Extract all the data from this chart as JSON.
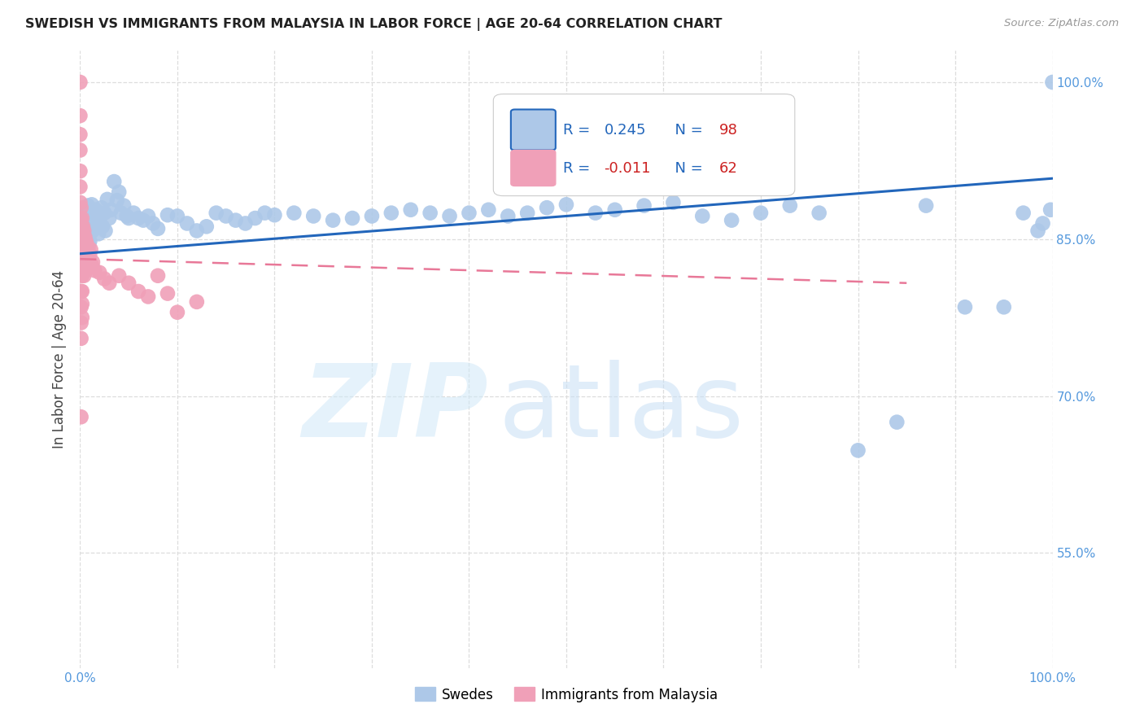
{
  "title": "SWEDISH VS IMMIGRANTS FROM MALAYSIA IN LABOR FORCE | AGE 20-64 CORRELATION CHART",
  "source": "Source: ZipAtlas.com",
  "ylabel": "In Labor Force | Age 20-64",
  "xlim": [
    0.0,
    1.0
  ],
  "ylim": [
    0.44,
    1.03
  ],
  "y_ticks": [
    0.55,
    0.7,
    0.85,
    1.0
  ],
  "y_tick_labels": [
    "55.0%",
    "70.0%",
    "85.0%",
    "100.0%"
  ],
  "swedes_color": "#adc8e8",
  "swedes_edge_color": "#adc8e8",
  "immigrants_color": "#f0a0b8",
  "immigrants_edge_color": "#f0a0b8",
  "swedes_line_color": "#2266bb",
  "immigrants_line_color": "#e87898",
  "tick_color": "#5599dd",
  "R_swedes": "0.245",
  "N_swedes": "98",
  "R_immigrants": "-0.011",
  "N_immigrants": "62",
  "legend_label1": "Swedes",
  "legend_label2": "Immigrants from Malaysia",
  "sw_x": [
    0.002,
    0.003,
    0.003,
    0.004,
    0.005,
    0.005,
    0.005,
    0.006,
    0.006,
    0.007,
    0.007,
    0.007,
    0.008,
    0.008,
    0.008,
    0.009,
    0.009,
    0.009,
    0.01,
    0.01,
    0.01,
    0.011,
    0.012,
    0.012,
    0.013,
    0.014,
    0.015,
    0.016,
    0.017,
    0.018,
    0.019,
    0.02,
    0.022,
    0.023,
    0.025,
    0.026,
    0.028,
    0.03,
    0.032,
    0.035,
    0.038,
    0.04,
    0.042,
    0.045,
    0.048,
    0.05,
    0.055,
    0.06,
    0.065,
    0.07,
    0.075,
    0.08,
    0.09,
    0.1,
    0.11,
    0.12,
    0.13,
    0.14,
    0.15,
    0.16,
    0.17,
    0.18,
    0.19,
    0.2,
    0.22,
    0.24,
    0.26,
    0.28,
    0.3,
    0.32,
    0.34,
    0.36,
    0.38,
    0.4,
    0.42,
    0.44,
    0.46,
    0.48,
    0.5,
    0.53,
    0.55,
    0.58,
    0.61,
    0.64,
    0.67,
    0.7,
    0.73,
    0.76,
    0.8,
    0.84,
    0.87,
    0.91,
    0.95,
    0.97,
    0.985,
    0.99,
    0.998,
    1.0
  ],
  "sw_y": [
    0.851,
    0.86,
    0.843,
    0.872,
    0.855,
    0.867,
    0.848,
    0.88,
    0.862,
    0.875,
    0.858,
    0.843,
    0.882,
    0.866,
    0.851,
    0.878,
    0.86,
    0.845,
    0.875,
    0.862,
    0.848,
    0.87,
    0.883,
    0.865,
    0.858,
    0.873,
    0.86,
    0.878,
    0.862,
    0.875,
    0.855,
    0.868,
    0.88,
    0.862,
    0.875,
    0.858,
    0.888,
    0.87,
    0.878,
    0.905,
    0.887,
    0.895,
    0.875,
    0.882,
    0.872,
    0.87,
    0.875,
    0.87,
    0.868,
    0.872,
    0.865,
    0.86,
    0.873,
    0.872,
    0.865,
    0.858,
    0.862,
    0.875,
    0.872,
    0.868,
    0.865,
    0.87,
    0.875,
    0.873,
    0.875,
    0.872,
    0.868,
    0.87,
    0.872,
    0.875,
    0.878,
    0.875,
    0.872,
    0.875,
    0.878,
    0.872,
    0.875,
    0.88,
    0.883,
    0.875,
    0.878,
    0.882,
    0.885,
    0.872,
    0.868,
    0.875,
    0.882,
    0.875,
    0.648,
    0.675,
    0.882,
    0.785,
    0.785,
    0.875,
    0.858,
    0.865,
    0.878,
    1.0
  ],
  "im_x": [
    0.0,
    0.0,
    0.0,
    0.0,
    0.0,
    0.0,
    0.0,
    0.0,
    0.001,
    0.001,
    0.001,
    0.001,
    0.001,
    0.001,
    0.001,
    0.001,
    0.001,
    0.001,
    0.002,
    0.002,
    0.002,
    0.002,
    0.002,
    0.002,
    0.002,
    0.002,
    0.003,
    0.003,
    0.003,
    0.003,
    0.004,
    0.004,
    0.004,
    0.004,
    0.005,
    0.005,
    0.005,
    0.006,
    0.006,
    0.006,
    0.007,
    0.007,
    0.008,
    0.008,
    0.009,
    0.009,
    0.01,
    0.011,
    0.012,
    0.013,
    0.015,
    0.02,
    0.025,
    0.03,
    0.04,
    0.05,
    0.06,
    0.07,
    0.08,
    0.09,
    0.1,
    0.12
  ],
  "im_y": [
    1.0,
    0.968,
    0.95,
    0.935,
    0.915,
    0.9,
    0.885,
    0.87,
    0.88,
    0.865,
    0.848,
    0.832,
    0.818,
    0.8,
    0.785,
    0.77,
    0.755,
    0.68,
    0.87,
    0.855,
    0.842,
    0.828,
    0.815,
    0.8,
    0.788,
    0.775,
    0.862,
    0.848,
    0.835,
    0.82,
    0.858,
    0.842,
    0.828,
    0.815,
    0.852,
    0.838,
    0.825,
    0.848,
    0.835,
    0.82,
    0.845,
    0.832,
    0.842,
    0.828,
    0.838,
    0.825,
    0.835,
    0.84,
    0.825,
    0.828,
    0.82,
    0.818,
    0.812,
    0.808,
    0.815,
    0.808,
    0.8,
    0.795,
    0.815,
    0.798,
    0.78,
    0.79
  ]
}
